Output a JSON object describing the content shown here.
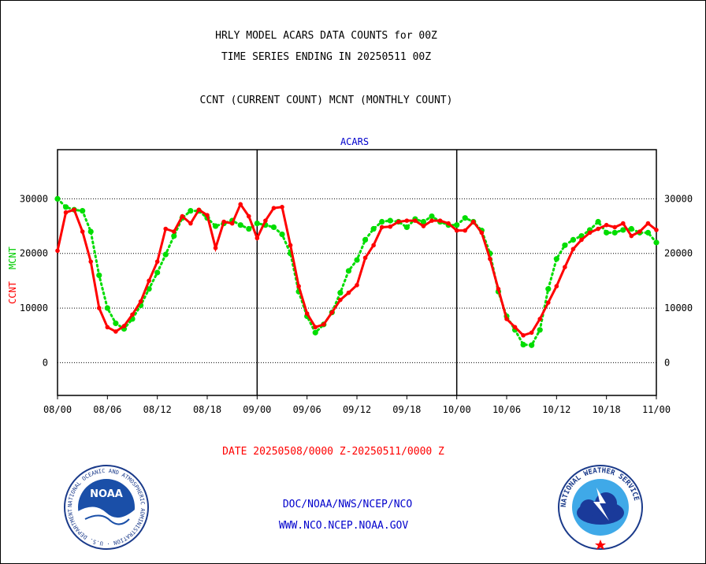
{
  "header": {
    "title_line1": "HRLY MODEL ACARS DATA COUNTS for 00Z",
    "title_line2": "TIME SERIES ENDING IN 20250511 00Z",
    "subtitle": "CCNT (CURRENT COUNT) MCNT (MONTHLY COUNT)"
  },
  "footer": {
    "date_range": "DATE 20250508/0000 Z-20250511/0000 Z",
    "link1": "DOC/NOAA/NWS/NCEP/NCO",
    "link2": "WWW.NCO.NCEP.NOAA.GOV"
  },
  "logos": {
    "noaa_text": "NOAA",
    "noaa_ring": "NATIONAL OCEANIC AND ATMOSPHERIC ADMINISTRATION · U.S. DEPARTMENT OF COMMERCE",
    "nws_ring": "NATIONAL WEATHER SERVICE"
  },
  "colors": {
    "ccnt": "#ff0000",
    "mcnt": "#00dd00",
    "label_blue": "#0000cc"
  },
  "chart_data": {
    "type": "line",
    "title": "ACARS",
    "ylabel_ccnt": "CCNT",
    "ylabel_mcnt": "MCNT",
    "x_ticks": [
      "08/00",
      "08/06",
      "08/12",
      "08/18",
      "09/00",
      "09/06",
      "09/12",
      "09/18",
      "10/00",
      "10/06",
      "10/12",
      "10/18",
      "11/00"
    ],
    "y_ticks": [
      0,
      10000,
      20000,
      30000
    ],
    "xlim": [
      0,
      72
    ],
    "ylim": [
      -6000,
      39000
    ],
    "grid": "horizontal-dotted",
    "x_unit": "hours since 08/00",
    "series": [
      {
        "name": "CCNT",
        "style": "solid",
        "x": [
          0,
          1,
          2,
          3,
          4,
          5,
          6,
          7,
          8,
          9,
          10,
          11,
          12,
          13,
          14,
          15,
          16,
          17,
          18,
          19,
          20,
          21,
          22,
          23,
          24,
          25,
          26,
          27,
          28,
          29,
          30,
          31,
          32,
          33,
          34,
          35,
          36,
          37,
          38,
          39,
          40,
          41,
          42,
          43,
          44,
          45,
          46,
          47,
          48,
          49,
          50,
          51,
          52,
          53,
          54,
          55,
          56,
          57,
          58,
          59,
          60,
          61,
          62,
          63,
          64,
          65,
          66,
          67,
          68,
          69,
          70,
          71,
          72
        ],
        "values": [
          20500,
          27500,
          28000,
          24000,
          18500,
          10000,
          6500,
          5700,
          6700,
          8800,
          11200,
          15000,
          18500,
          24500,
          24000,
          26800,
          25500,
          28000,
          27000,
          21000,
          25800,
          25500,
          29000,
          26800,
          22800,
          26000,
          28300,
          28500,
          21500,
          14000,
          9000,
          6500,
          7000,
          9200,
          11500,
          12800,
          14200,
          19200,
          21500,
          24800,
          24900,
          25800,
          26000,
          26000,
          25000,
          26000,
          26000,
          25500,
          24200,
          24200,
          25800,
          23800,
          19000,
          13500,
          8000,
          6500,
          5000,
          5500,
          8000,
          11000,
          14000,
          17500,
          20800,
          22500,
          23800,
          24500,
          25200,
          24800,
          25500,
          23200,
          24000,
          25500,
          24300
        ]
      },
      {
        "name": "MCNT",
        "style": "dotted",
        "x": [
          0,
          1,
          2,
          3,
          4,
          5,
          6,
          7,
          8,
          9,
          10,
          11,
          12,
          13,
          14,
          15,
          16,
          17,
          18,
          19,
          20,
          21,
          22,
          23,
          24,
          25,
          26,
          27,
          28,
          29,
          30,
          31,
          32,
          33,
          34,
          35,
          36,
          37,
          38,
          39,
          40,
          41,
          42,
          43,
          44,
          45,
          46,
          47,
          48,
          49,
          50,
          51,
          52,
          53,
          54,
          55,
          56,
          57,
          58,
          59,
          60,
          61,
          62,
          63,
          64,
          65,
          66,
          67,
          68,
          69,
          70,
          71,
          72
        ],
        "values": [
          30000,
          28500,
          28000,
          27800,
          24000,
          16000,
          10000,
          7200,
          6200,
          8000,
          10500,
          13500,
          16500,
          19800,
          23200,
          26500,
          27800,
          27800,
          26500,
          25000,
          25500,
          26000,
          25200,
          24500,
          25500,
          25200,
          24800,
          23500,
          20000,
          13000,
          8500,
          5500,
          7000,
          9200,
          12800,
          16800,
          18800,
          22500,
          24500,
          25800,
          26000,
          25800,
          24800,
          26300,
          25800,
          26800,
          25800,
          25200,
          25200,
          26500,
          25800,
          24200,
          20000,
          13000,
          8500,
          6000,
          3300,
          3200,
          6000,
          13500,
          19000,
          21500,
          22500,
          23200,
          24300,
          25800,
          23800,
          23800,
          24300,
          24500,
          23800,
          23800,
          22000
        ]
      }
    ]
  }
}
